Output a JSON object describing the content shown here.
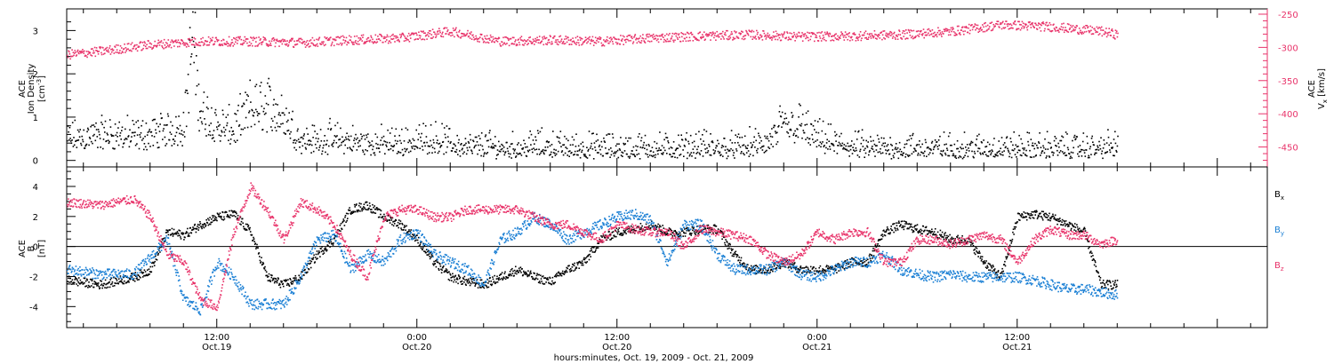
{
  "chart_data": [
    {
      "type": "scatter",
      "panel": "top",
      "left_axis": {
        "title_line1": "ACE",
        "title_line2": "Ion Density",
        "unit_base": "[cm",
        "unit_sup": "-3",
        "unit_end": "]",
        "ylim": [
          -0.15,
          3.5
        ],
        "ticks": [
          0,
          1,
          2,
          3
        ],
        "color": "#000000"
      },
      "right_axis": {
        "title_line1": "ACE",
        "title_base": "V",
        "title_sub": "x",
        "title_unit": " [km/s]",
        "ylim": [
          -480,
          -242
        ],
        "ticks": [
          -250,
          -300,
          -350,
          -400,
          -450
        ],
        "color": "#e8336a"
      },
      "series": [
        {
          "key": "density",
          "color": "#000000",
          "axis": "left",
          "x_hours": [
            3,
            4,
            5,
            6,
            7,
            8,
            9,
            10,
            10.5,
            11,
            11.5,
            12,
            13,
            14,
            15,
            16,
            17,
            18,
            19,
            20,
            21,
            22,
            23,
            24,
            25,
            26,
            27,
            28,
            29,
            30,
            31,
            32,
            33,
            34,
            35,
            36,
            37,
            38,
            39,
            40,
            41,
            42,
            43,
            44,
            45,
            46,
            47,
            48,
            49,
            50,
            51,
            52,
            53,
            54,
            55,
            56,
            57,
            58,
            59,
            60,
            61,
            62,
            63,
            64,
            65,
            66
          ],
          "values": [
            0.5,
            0.55,
            0.6,
            0.6,
            0.55,
            0.6,
            0.7,
            0.8,
            2.8,
            1.1,
            1.0,
            0.8,
            0.7,
            1.2,
            1.3,
            1.0,
            0.5,
            0.45,
            0.5,
            0.45,
            0.4,
            0.4,
            0.4,
            0.45,
            0.5,
            0.4,
            0.3,
            0.35,
            0.3,
            0.3,
            0.35,
            0.35,
            0.3,
            0.3,
            0.3,
            0.3,
            0.3,
            0.3,
            0.3,
            0.3,
            0.35,
            0.3,
            0.3,
            0.35,
            0.4,
            0.9,
            0.8,
            0.5,
            0.4,
            0.35,
            0.3,
            0.3,
            0.3,
            0.3,
            0.3,
            0.3,
            0.3,
            0.3,
            0.3,
            0.3,
            0.3,
            0.3,
            0.3,
            0.3,
            0.3,
            0.35
          ],
          "spread": 0.22
        },
        {
          "key": "vx",
          "color": "#e8336a",
          "axis": "right",
          "x_hours": [
            3,
            5,
            8,
            11,
            14,
            17,
            20,
            23,
            26,
            27,
            29,
            32,
            35,
            38,
            41,
            44,
            47,
            50,
            53,
            56,
            59,
            62,
            65,
            66
          ],
          "values": [
            -310,
            -305,
            -295,
            -290,
            -290,
            -292,
            -288,
            -285,
            -275,
            -280,
            -290,
            -288,
            -290,
            -285,
            -282,
            -280,
            -283,
            -282,
            -280,
            -275,
            -265,
            -268,
            -275,
            -280
          ],
          "spread": 7
        }
      ],
      "xlim_hours": [
        3,
        75
      ]
    },
    {
      "type": "scatter",
      "panel": "bottom",
      "left_axis": {
        "title_line1": "ACE",
        "title_line2": "B",
        "unit": "[nT]",
        "ylim": [
          -5.4,
          5.3
        ],
        "ticks": [
          4,
          2,
          0,
          -2,
          -4
        ],
        "color": "#000000"
      },
      "series": [
        {
          "name_base": "B",
          "name_sub": "x",
          "color": "#000000",
          "x_hours": [
            3,
            5,
            7,
            8,
            9,
            10,
            11,
            12,
            13,
            14,
            15,
            16,
            17,
            18,
            19,
            20,
            21,
            22,
            23,
            24,
            25,
            26,
            27,
            28,
            29,
            30,
            31,
            32,
            33,
            34,
            35,
            36,
            37,
            38,
            39,
            40,
            41,
            42,
            43,
            44,
            45,
            46,
            47,
            48,
            49,
            50,
            51,
            52,
            53,
            54,
            55,
            56,
            57,
            58,
            59,
            60,
            61,
            62,
            63,
            64,
            65,
            66
          ],
          "values": [
            -2.2,
            -2.5,
            -2.0,
            -1.5,
            1.0,
            0.8,
            1.5,
            2.0,
            2.2,
            1.0,
            -2.0,
            -2.5,
            -2.0,
            -0.5,
            0.5,
            2.5,
            2.8,
            2.0,
            1.5,
            0.5,
            -1.0,
            -2.0,
            -2.3,
            -2.5,
            -2.0,
            -1.5,
            -2.0,
            -2.3,
            -1.5,
            -1.0,
            0.5,
            1.0,
            1.2,
            1.5,
            1.0,
            1.0,
            1.2,
            1.2,
            -0.5,
            -1.5,
            -1.5,
            -1.0,
            -1.5,
            -1.5,
            -1.5,
            -1.0,
            -1.0,
            1.0,
            1.5,
            1.2,
            1.0,
            0.5,
            0.5,
            -1.0,
            -2.0,
            2.0,
            2.2,
            2.0,
            1.5,
            1.0,
            -2.5,
            -2.5
          ],
          "spread": 0.3
        },
        {
          "name_base": "B",
          "name_sub": "y",
          "color": "#1a7fd4",
          "x_hours": [
            3,
            5,
            7,
            9,
            10,
            11,
            12,
            13,
            14,
            15,
            16,
            17,
            18,
            19,
            20,
            21,
            22,
            23,
            24,
            25,
            26,
            27,
            28,
            29,
            30,
            31,
            32,
            33,
            34,
            35,
            36,
            37,
            38,
            39,
            40,
            41,
            42,
            43,
            44,
            45,
            46,
            47,
            48,
            49,
            50,
            51,
            52,
            53,
            54,
            55,
            56,
            57,
            58,
            59,
            60,
            61,
            62,
            63,
            64,
            65,
            66
          ],
          "values": [
            -1.5,
            -1.8,
            -1.8,
            0.5,
            -3.5,
            -4.2,
            -1.0,
            -2.0,
            -3.8,
            -3.8,
            -3.8,
            -2.0,
            0.5,
            0.8,
            -1.5,
            -0.5,
            -1.0,
            0.5,
            1.0,
            -0.5,
            -1.0,
            -1.5,
            -2.5,
            0.5,
            1.0,
            2.0,
            1.5,
            0.5,
            1.0,
            1.5,
            2.0,
            2.2,
            1.8,
            -1.0,
            1.5,
            1.5,
            -0.5,
            -1.5,
            -1.5,
            -1.5,
            -1.0,
            -1.8,
            -2.0,
            -1.5,
            -1.0,
            -1.0,
            -0.5,
            -1.5,
            -1.8,
            -2.0,
            -1.8,
            -2.0,
            -2.0,
            -2.0,
            -2.0,
            -2.2,
            -2.5,
            -2.8,
            -2.8,
            -3.0,
            -3.2
          ],
          "spread": 0.35
        },
        {
          "name_base": "B",
          "name_sub": "z",
          "color": "#e8336a",
          "x_hours": [
            3,
            5,
            7,
            8,
            9,
            10,
            11,
            12,
            13,
            14,
            15,
            16,
            17,
            18,
            19,
            20,
            21,
            22,
            23,
            24,
            25,
            26,
            27,
            28,
            29,
            30,
            31,
            32,
            33,
            34,
            35,
            36,
            37,
            38,
            39,
            40,
            41,
            42,
            43,
            44,
            45,
            46,
            47,
            48,
            49,
            50,
            51,
            52,
            53,
            54,
            55,
            56,
            57,
            58,
            59,
            60,
            61,
            62,
            63,
            64,
            65,
            66
          ],
          "values": [
            3.0,
            2.8,
            3.2,
            2.0,
            -0.5,
            -1.0,
            -3.5,
            -4.0,
            1.0,
            4.0,
            2.5,
            0.5,
            3.0,
            2.5,
            1.5,
            -0.5,
            -2.0,
            2.0,
            2.5,
            2.5,
            2.0,
            2.0,
            2.5,
            2.5,
            2.5,
            2.5,
            2.0,
            1.5,
            1.5,
            1.0,
            0.5,
            1.5,
            1.2,
            1.0,
            1.0,
            0.0,
            1.2,
            1.0,
            0.8,
            0.5,
            -0.5,
            -1.0,
            -0.5,
            1.0,
            0.5,
            1.0,
            1.0,
            -1.0,
            -1.0,
            0.5,
            0.5,
            0.2,
            0.5,
            0.8,
            0.5,
            -1.0,
            0.5,
            1.2,
            0.8,
            0.8,
            0.2,
            0.5
          ],
          "spread": 0.3
        }
      ],
      "xlim_hours": [
        3,
        75
      ]
    }
  ],
  "x_axis": {
    "ticks": [
      {
        "hour": 12,
        "time": "12:00",
        "date": "Oct.19"
      },
      {
        "hour": 24,
        "time": "0:00",
        "date": "Oct.20"
      },
      {
        "hour": 36,
        "time": "12:00",
        "date": "Oct.20"
      },
      {
        "hour": 48,
        "time": "0:00",
        "date": "Oct.21"
      },
      {
        "hour": 60,
        "time": "12:00",
        "date": "Oct.21"
      }
    ],
    "xlabel": "hours:minutes, Oct. 19, 2009 - Oct. 21, 2009"
  }
}
